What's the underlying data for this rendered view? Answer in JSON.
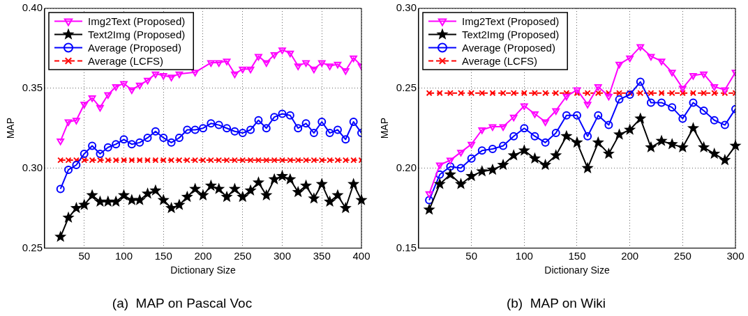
{
  "chart_data": [
    {
      "type": "line",
      "title": "(a)  MAP on Pascal Voc",
      "xlabel": "Dictionary Size",
      "ylabel": "MAP",
      "x": [
        20,
        30,
        40,
        50,
        60,
        70,
        80,
        90,
        100,
        110,
        120,
        130,
        140,
        150,
        160,
        170,
        180,
        190,
        200,
        210,
        220,
        230,
        240,
        250,
        260,
        270,
        280,
        290,
        300,
        310,
        320,
        330,
        340,
        350,
        360,
        370,
        380,
        390,
        400
      ],
      "xlim": [
        0,
        400
      ],
      "xticks": [
        50,
        100,
        150,
        200,
        250,
        300,
        350,
        400
      ],
      "ylim": [
        0.25,
        0.4
      ],
      "yticks": [
        0.25,
        {
          "value": 0.3,
          "label": "0.30"
        },
        0.35,
        {
          "value": 0.4,
          "label": "0.40"
        }
      ],
      "grid": true,
      "legend": "top left",
      "series": [
        {
          "name": "Img2Text (Proposed)",
          "color": "#ff00ff",
          "marker": "triangle",
          "line_style": "solid",
          "values": [
            0.317,
            0.329,
            0.33,
            0.34,
            0.344,
            0.338,
            0.346,
            0.351,
            0.353,
            0.349,
            0.352,
            0.355,
            0.359,
            0.358,
            0.357,
            0.359,
            null,
            0.36,
            null,
            0.366,
            0.366,
            0.367,
            0.359,
            0.362,
            0.362,
            0.37,
            0.366,
            0.371,
            0.374,
            0.372,
            0.364,
            0.366,
            0.362,
            0.366,
            0.364,
            0.365,
            0.361,
            0.369,
            0.364
          ]
        },
        {
          "name": "Text2Img (Proposed)",
          "color": "#000000",
          "marker": "star",
          "line_style": "solid",
          "values": [
            0.257,
            0.269,
            0.275,
            0.277,
            0.283,
            0.279,
            0.279,
            0.279,
            0.283,
            0.28,
            0.28,
            0.284,
            0.286,
            0.28,
            0.275,
            0.277,
            0.282,
            0.287,
            0.283,
            0.289,
            0.287,
            0.282,
            0.287,
            0.282,
            0.286,
            0.291,
            0.283,
            0.293,
            0.295,
            0.293,
            0.285,
            0.289,
            0.281,
            0.29,
            0.279,
            0.283,
            0.275,
            0.29,
            0.28
          ]
        },
        {
          "name": "Average (Proposed)",
          "color": "#0000ff",
          "marker": "circle",
          "line_style": "solid",
          "values": [
            0.287,
            0.299,
            0.302,
            0.309,
            0.314,
            0.309,
            0.313,
            0.315,
            0.318,
            0.315,
            0.316,
            0.319,
            0.323,
            0.319,
            0.316,
            0.319,
            0.324,
            0.324,
            0.325,
            0.328,
            0.327,
            0.325,
            0.323,
            0.322,
            0.324,
            0.33,
            0.325,
            0.332,
            0.334,
            0.333,
            0.325,
            0.328,
            0.322,
            0.329,
            0.322,
            0.324,
            0.318,
            0.329,
            0.322
          ]
        },
        {
          "name": "Average (LCFS)",
          "color": "#ff0000",
          "marker": "cross",
          "line_style": "dashed",
          "values": [
            0.305,
            0.305,
            0.305,
            0.305,
            0.305,
            0.305,
            0.305,
            0.305,
            0.305,
            0.305,
            0.305,
            0.305,
            0.305,
            0.305,
            0.305,
            0.305,
            0.305,
            0.305,
            0.305,
            0.305,
            0.305,
            0.305,
            0.305,
            0.305,
            0.305,
            0.305,
            0.305,
            0.305,
            0.305,
            0.305,
            0.305,
            0.305,
            0.305,
            0.305,
            0.305,
            0.305,
            0.305,
            0.305,
            0.305
          ]
        }
      ]
    },
    {
      "type": "line",
      "title": "(b)  MAP on Wiki",
      "xlabel": "Dictionary Size",
      "ylabel": "MAP",
      "x": [
        10,
        20,
        30,
        40,
        50,
        60,
        70,
        80,
        90,
        100,
        110,
        120,
        130,
        140,
        150,
        160,
        170,
        180,
        190,
        200,
        210,
        220,
        230,
        240,
        250,
        260,
        270,
        280,
        290,
        300
      ],
      "xlim": [
        0,
        300
      ],
      "xticks": [
        50,
        100,
        150,
        200,
        250,
        300
      ],
      "ylim": [
        0.15,
        0.3
      ],
      "yticks": [
        0.15,
        {
          "value": 0.2,
          "label": "0.20"
        },
        0.25,
        {
          "value": 0.3,
          "label": "0.30"
        }
      ],
      "grid": true,
      "legend": "top left",
      "series": [
        {
          "name": "Img2Text (Proposed)",
          "color": "#ff00ff",
          "marker": "triangle",
          "line_style": "solid",
          "values": [
            0.184,
            0.202,
            0.205,
            0.21,
            0.215,
            0.224,
            0.226,
            0.226,
            0.232,
            0.239,
            0.234,
            0.229,
            0.236,
            0.245,
            0.249,
            0.24,
            0.251,
            0.245,
            0.265,
            0.269,
            0.276,
            0.27,
            0.267,
            0.26,
            0.25,
            0.258,
            0.259,
            0.251,
            0.249,
            0.26
          ]
        },
        {
          "name": "Text2Img (Proposed)",
          "color": "#000000",
          "marker": "star",
          "line_style": "solid",
          "values": [
            0.174,
            0.19,
            0.196,
            0.19,
            0.195,
            0.198,
            0.199,
            0.202,
            0.208,
            0.211,
            0.206,
            0.202,
            0.208,
            0.22,
            0.216,
            0.2,
            0.216,
            0.209,
            0.221,
            0.224,
            0.231,
            0.213,
            0.217,
            0.215,
            0.213,
            0.225,
            0.213,
            0.209,
            0.205,
            0.214
          ]
        },
        {
          "name": "Average (Proposed)",
          "color": "#0000ff",
          "marker": "circle",
          "line_style": "solid",
          "values": [
            0.18,
            0.196,
            0.201,
            0.2,
            0.206,
            0.211,
            0.212,
            0.214,
            0.22,
            0.225,
            0.22,
            0.216,
            0.222,
            0.233,
            0.233,
            0.22,
            0.233,
            0.227,
            0.243,
            0.246,
            0.254,
            0.241,
            0.241,
            0.238,
            0.231,
            0.241,
            0.236,
            0.23,
            0.227,
            0.237
          ]
        },
        {
          "name": "Average (LCFS)",
          "color": "#ff0000",
          "marker": "cross",
          "line_style": "dashed",
          "values": [
            0.247,
            0.247,
            0.247,
            0.247,
            0.247,
            0.247,
            0.247,
            0.247,
            0.247,
            0.247,
            0.247,
            0.247,
            0.247,
            0.247,
            0.247,
            0.247,
            0.247,
            0.247,
            0.247,
            0.247,
            0.247,
            0.247,
            0.247,
            0.247,
            0.247,
            0.247,
            0.247,
            0.247,
            0.247,
            0.247
          ]
        }
      ]
    }
  ]
}
